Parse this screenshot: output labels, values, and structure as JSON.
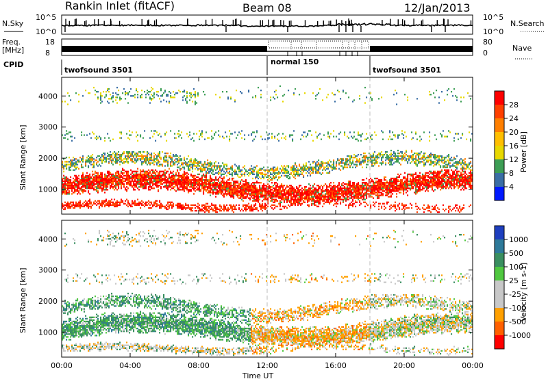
{
  "header": {
    "title": "Rankin Inlet (fitACF)",
    "beam": "Beam 08",
    "date": "12/Jan/2013"
  },
  "top_panel": {
    "left_label": "N.Sky",
    "left_ticks": [
      "10^5",
      "10^0"
    ],
    "right_label": "N.Search",
    "right_ticks": [
      "10^5",
      "10^0"
    ]
  },
  "freq_panel": {
    "left_label_1": "Freq.",
    "left_label_2": "[MHz]",
    "left_ticks": [
      "18",
      "8"
    ],
    "right_label": "Nave",
    "right_ticks": [
      "80",
      "0"
    ],
    "cpid_label": "CPID",
    "cpid_segments": [
      {
        "label": "twofsound 3501",
        "start": "00:00",
        "end": "12:00"
      },
      {
        "label": "normal 150",
        "start": "12:00",
        "end": "18:00"
      },
      {
        "label": "twofsound 3501",
        "start": "18:00",
        "end": "24:00"
      }
    ]
  },
  "chart_data": [
    {
      "type": "heatmap",
      "title": "",
      "ylabel": "Slant Range [km]",
      "yticks": [
        "1000",
        "2000",
        "3000",
        "4000"
      ],
      "ylim": [
        200,
        4600
      ],
      "colorbar_label": "Power [dB]",
      "colorbar_ticks": [
        "28",
        "24",
        "20",
        "16",
        "12",
        "8",
        "4"
      ],
      "colorbar_colors": [
        "#ff0000",
        "#ff4000",
        "#ff7f00",
        "#ffbf00",
        "#e8d800",
        "#3d9e55",
        "#3a6ea5",
        "#0019ff"
      ]
    },
    {
      "type": "heatmap",
      "title": "",
      "ylabel": "Slant Range [km]",
      "yticks": [
        "1000",
        "2000",
        "3000",
        "4000"
      ],
      "ylim": [
        200,
        4600
      ],
      "colorbar_label": "Velocity [m s-1]",
      "colorbar_ticks": [
        "1000",
        "500",
        "100",
        "25",
        "-25",
        "-100",
        "-500",
        "-1000"
      ],
      "colorbar_colors": [
        "#1e3fbf",
        "#2e7a9a",
        "#3a8f60",
        "#50c840",
        "#c8c8c8",
        "#c8c8c8",
        "#ffa000",
        "#ff6000",
        "#ff0000"
      ]
    }
  ],
  "x_axis": {
    "label": "Time UT",
    "ticks": [
      "00:00",
      "04:00",
      "08:00",
      "12:00",
      "16:00",
      "20:00",
      "00:00"
    ]
  }
}
